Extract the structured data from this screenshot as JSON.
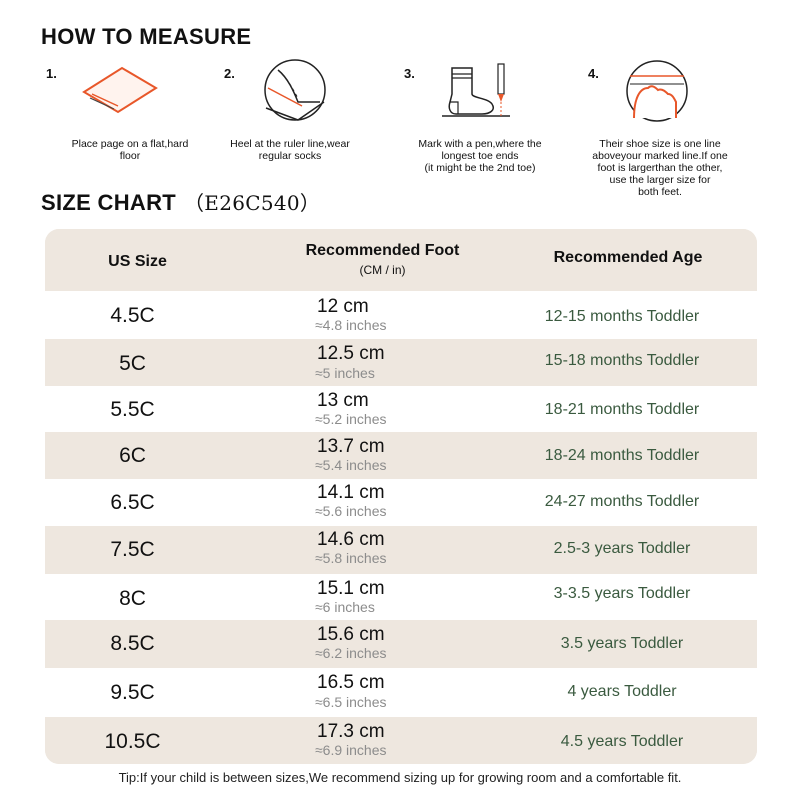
{
  "how_to_measure": {
    "title": "HOW TO MEASURE",
    "steps": [
      {
        "num": "1.",
        "text": "Place page on a flat,hard\nfloor",
        "icon": "paper-on-floor-icon"
      },
      {
        "num": "2.",
        "text": "Heel at the ruler line,wear\nregular socks",
        "icon": "heel-on-line-icon"
      },
      {
        "num": "3.",
        "text": "Mark with a pen,where the\nlongest toe ends\n(it might be the 2nd toe)",
        "icon": "sock-and-pen-icon"
      },
      {
        "num": "4.",
        "text": "Their shoe size is one line\naboveyour marked line.If one\nfoot is largerthan the other,\nuse the larger size for\nboth feet.",
        "icon": "toe-measure-icon"
      }
    ]
  },
  "size_chart": {
    "title": "SIZE CHART",
    "code": "（E26C540）",
    "headers": {
      "us_size": "US Size",
      "foot": "Recommended Foot",
      "foot_sub": "(CM / in)",
      "age": "Recommended Age"
    },
    "rows": [
      {
        "size": "4.5C",
        "cm": "12 cm",
        "inches": "≈4.8 inches",
        "age": "12-15 months Toddler"
      },
      {
        "size": "5C",
        "cm": "12.5 cm",
        "inches": "≈5 inches",
        "age": "15-18 months Toddler"
      },
      {
        "size": "5.5C",
        "cm": "13 cm",
        "inches": "≈5.2 inches",
        "age": "18-21 months Toddler"
      },
      {
        "size": "6C",
        "cm": "13.7 cm",
        "inches": "≈5.4 inches",
        "age": "18-24 months Toddler"
      },
      {
        "size": "6.5C",
        "cm": "14.1 cm",
        "inches": "≈5.6 inches",
        "age": "24-27 months Toddler"
      },
      {
        "size": "7.5C",
        "cm": "14.6 cm",
        "inches": "≈5.8 inches",
        "age": "2.5-3 years Toddler"
      },
      {
        "size": "8C",
        "cm": "15.1 cm",
        "inches": "≈6 inches",
        "age": "3-3.5 years Toddler"
      },
      {
        "size": "8.5C",
        "cm": "15.6 cm",
        "inches": "≈6.2 inches",
        "age": "3.5 years Toddler"
      },
      {
        "size": "9.5C",
        "cm": "16.5 cm",
        "inches": "≈6.5 inches",
        "age": "4 years Toddler"
      },
      {
        "size": "10.5C",
        "cm": "17.3 cm",
        "inches": "≈6.9 inches",
        "age": "4.5 years Toddler"
      }
    ]
  },
  "tip": "Tip:If your child is between sizes,We recommend sizing up for growing room and a comfortable fit.",
  "colors": {
    "accent": "#e8572a",
    "row_beige": "#eee7df",
    "age_text": "#3a5a3f",
    "inch_text": "#8c8c8c"
  }
}
